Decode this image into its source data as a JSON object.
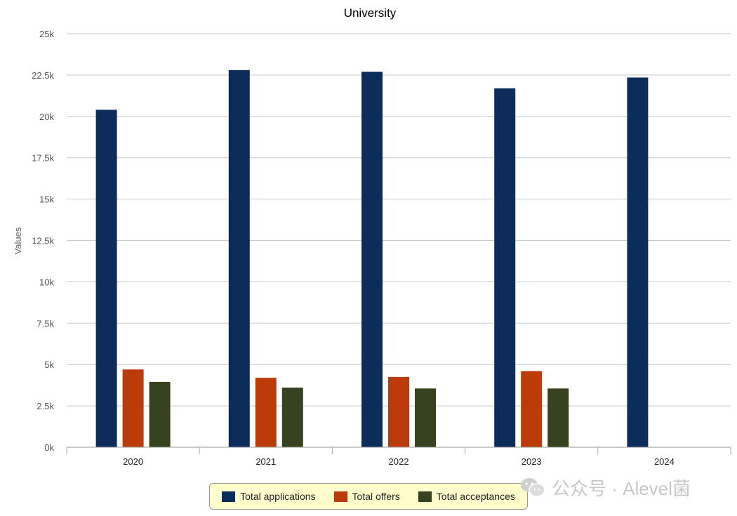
{
  "chart_data": {
    "type": "bar",
    "title": "University",
    "xlabel": "",
    "ylabel": "Values",
    "categories": [
      "2020",
      "2021",
      "2022",
      "2023",
      "2024"
    ],
    "ylim": [
      0,
      25000
    ],
    "yticks": [
      0,
      2500,
      5000,
      7500,
      10000,
      12500,
      15000,
      17500,
      20000,
      22500,
      25000
    ],
    "ytick_labels": [
      "0k",
      "2.5k",
      "5k",
      "7.5k",
      "10k",
      "12.5k",
      "15k",
      "17.5k",
      "20k",
      "22.5k",
      "25k"
    ],
    "grid": true,
    "legend_position": "bottom-center",
    "series": [
      {
        "name": "Total applications",
        "color": "#0c2c5c",
        "values": [
          20400,
          22800,
          22700,
          21700,
          22350
        ]
      },
      {
        "name": "Total offers",
        "color": "#bb3b0a",
        "values": [
          4700,
          4200,
          4250,
          4600,
          null
        ]
      },
      {
        "name": "Total acceptances",
        "color": "#374220",
        "values": [
          3950,
          3600,
          3550,
          3550,
          null
        ]
      }
    ]
  },
  "watermark": {
    "text": "公众号 · Alevel菌",
    "icon": "wechat-icon"
  }
}
